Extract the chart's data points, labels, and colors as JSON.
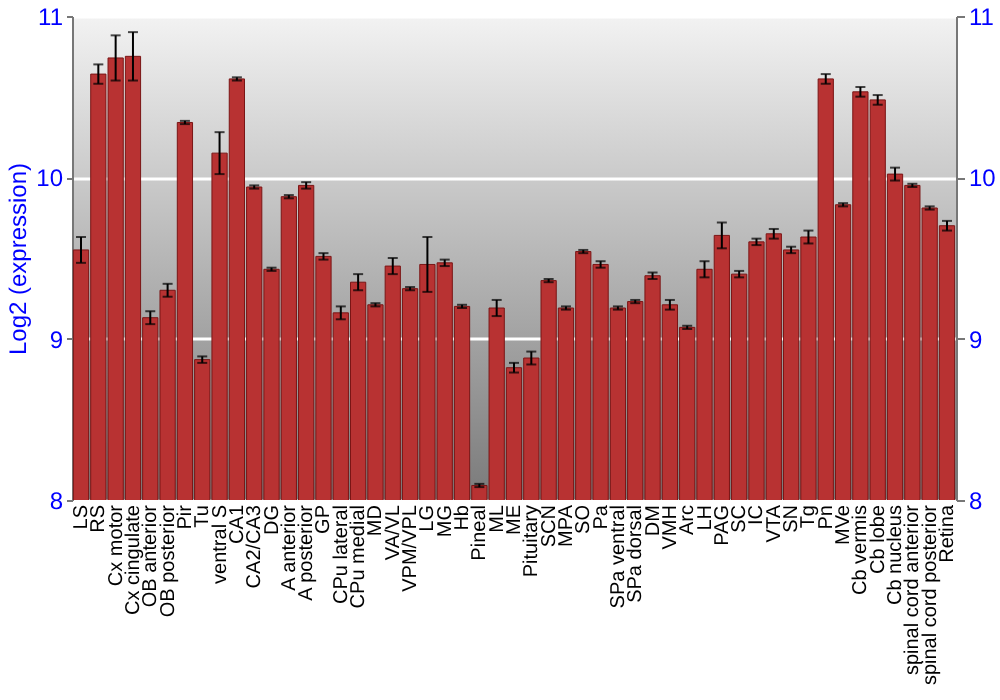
{
  "chart_data": {
    "type": "bar",
    "ylabel": "Log2 (expression)",
    "categories": [
      "LS",
      "RS",
      "Cx motor",
      "Cx cingulate",
      "OB anterior",
      "OB posterior",
      "Pir",
      "Tu",
      "ventral S",
      "CA1",
      "CA2/CA3",
      "DG",
      "A anterior",
      "A posterior",
      "GP",
      "CPu lateral",
      "CPu medial",
      "MD",
      "VA/VL",
      "VPM/VPL",
      "LG",
      "MG",
      "Hb",
      "Pineal",
      "ML",
      "ME",
      "Pituitary",
      "SCN",
      "MPA",
      "SO",
      "Pa",
      "SPa ventral",
      "SPa dorsal",
      "DM",
      "VMH",
      "Arc",
      "LH",
      "PAG",
      "SC",
      "IC",
      "VTA",
      "SN",
      "Tg",
      "Pn",
      "MVe",
      "Cb vermis",
      "Cb lobe",
      "Cb nucleus",
      "spinal cord anterior",
      "spinal cord posterior",
      "Retina"
    ],
    "values": [
      9.55,
      10.64,
      10.74,
      10.75,
      9.13,
      9.3,
      10.34,
      8.87,
      10.15,
      10.61,
      9.94,
      9.43,
      9.88,
      9.95,
      9.51,
      9.16,
      9.35,
      9.21,
      9.45,
      9.31,
      9.46,
      9.47,
      9.2,
      8.09,
      9.19,
      8.82,
      8.88,
      9.36,
      9.19,
      9.54,
      9.46,
      9.19,
      9.23,
      9.39,
      9.21,
      9.07,
      9.43,
      9.64,
      9.4,
      9.6,
      9.65,
      9.55,
      9.63,
      10.61,
      9.83,
      10.53,
      10.48,
      10.02,
      9.95,
      9.81,
      9.7
    ],
    "errors": [
      0.08,
      0.06,
      0.14,
      0.15,
      0.04,
      0.04,
      0.01,
      0.02,
      0.13,
      0.01,
      0.01,
      0.01,
      0.01,
      0.02,
      0.02,
      0.04,
      0.05,
      0.01,
      0.05,
      0.01,
      0.17,
      0.02,
      0.01,
      0.01,
      0.05,
      0.03,
      0.04,
      0.01,
      0.01,
      0.01,
      0.02,
      0.01,
      0.01,
      0.02,
      0.03,
      0.01,
      0.05,
      0.08,
      0.02,
      0.02,
      0.03,
      0.02,
      0.04,
      0.03,
      0.01,
      0.03,
      0.03,
      0.04,
      0.01,
      0.01,
      0.03
    ],
    "color": "#b83232",
    "ylim": [
      8,
      11
    ],
    "yticks": [
      8,
      9,
      10,
      11
    ],
    "y2lim": [
      8,
      11
    ],
    "y2ticks": [
      8,
      9,
      10,
      11
    ],
    "grid": "y"
  }
}
